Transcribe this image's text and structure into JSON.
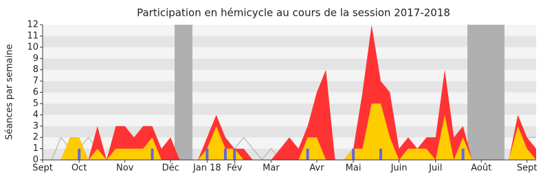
{
  "chart_data": {
    "type": "area",
    "title": "Participation en hémicycle au cours de la session 2017-2018",
    "y_label": "Séances par semaine",
    "categories": [
      "Sept",
      null,
      null,
      null,
      "Oct",
      null,
      null,
      null,
      null,
      "Nov",
      null,
      null,
      null,
      null,
      "Déc",
      null,
      null,
      null,
      "Jan 18",
      null,
      null,
      "Fév",
      null,
      null,
      null,
      "Mar",
      null,
      null,
      null,
      null,
      "Avr",
      null,
      null,
      null,
      "Mai",
      null,
      null,
      null,
      null,
      "Juin",
      null,
      null,
      null,
      "Juil",
      null,
      null,
      null,
      null,
      "Août",
      null,
      null,
      null,
      null,
      "Sept",
      null
    ],
    "series": [
      {
        "kind": "area",
        "color": "#ff3333",
        "values": [
          0,
          0,
          0,
          2,
          2,
          0,
          3,
          0,
          3,
          3,
          2,
          3,
          3,
          1,
          2,
          0,
          0,
          0,
          2,
          4,
          2,
          1,
          1,
          0,
          0,
          0,
          1,
          2,
          1,
          3,
          6,
          8,
          0,
          0,
          1,
          6,
          12,
          7,
          6,
          1,
          2,
          1,
          2,
          2,
          8,
          2,
          3,
          0,
          0,
          0,
          0,
          0,
          4,
          2,
          1
        ]
      },
      {
        "kind": "area",
        "color": "#ffcc00",
        "values": [
          0,
          0,
          0,
          2,
          2,
          0,
          1,
          0,
          1,
          1,
          1,
          1,
          2,
          0,
          0,
          0,
          0,
          0,
          1,
          3,
          1,
          1,
          0,
          0,
          0,
          0,
          0,
          0,
          0,
          2,
          2,
          0,
          0,
          0,
          1,
          1,
          5,
          5,
          2,
          0,
          1,
          1,
          1,
          0,
          4,
          0,
          2,
          0,
          0,
          0,
          0,
          0,
          3,
          1,
          0
        ]
      },
      {
        "kind": "line",
        "color": "#aaaaaa",
        "values": [
          0,
          0,
          2,
          1,
          1,
          2,
          1,
          0,
          2,
          2,
          1,
          2,
          2,
          1,
          1,
          0,
          0,
          0,
          1,
          2,
          1,
          1,
          2,
          1,
          0,
          1,
          0,
          1,
          1,
          2,
          2,
          5,
          0,
          0,
          1,
          2,
          5,
          5,
          2,
          1,
          1,
          1,
          1,
          1,
          3,
          1,
          2,
          0,
          0,
          0,
          0,
          0,
          2,
          2,
          2
        ]
      },
      {
        "kind": "bar",
        "color": "#6666dd",
        "values": [
          null,
          null,
          null,
          null,
          1,
          null,
          null,
          null,
          null,
          null,
          null,
          null,
          1,
          null,
          null,
          null,
          null,
          null,
          1,
          null,
          1,
          1,
          null,
          null,
          null,
          null,
          null,
          null,
          null,
          1,
          null,
          null,
          null,
          null,
          1,
          null,
          null,
          1,
          null,
          null,
          null,
          null,
          null,
          null,
          null,
          null,
          1,
          null,
          null,
          null,
          null,
          null,
          null,
          null,
          null
        ]
      }
    ],
    "ylim": [
      0,
      12
    ],
    "yticks": [
      0,
      1,
      2,
      3,
      4,
      5,
      6,
      7,
      8,
      9,
      10,
      11,
      12
    ],
    "grid": true
  }
}
